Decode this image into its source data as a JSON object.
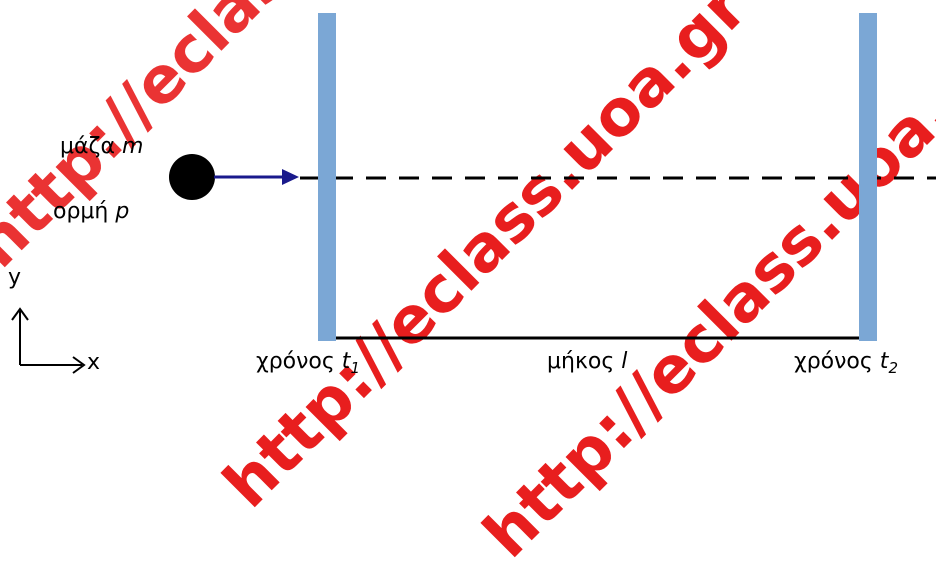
{
  "watermark": {
    "text_a": "http://eclass.uoa.gr",
    "text_b": "http://eclass.uoa.gr",
    "text_c": "http://eclass.uoa.gr",
    "color": "#e81e1e"
  },
  "particle": {
    "mass_label": "μάζα ",
    "mass_symbol": "m",
    "momentum_label": "ορμή ",
    "momentum_symbol": "p"
  },
  "wall_left": {
    "time_label": "χρόνος ",
    "time_symbol": "t",
    "time_index": "1"
  },
  "wall_right": {
    "time_label": "χρόνος ",
    "time_symbol": "t",
    "time_index": "2"
  },
  "length": {
    "label": "μήκος ",
    "symbol": "l"
  },
  "axes": {
    "y": "y",
    "x": "x"
  },
  "colors": {
    "wall": "#7ba7d5",
    "arrow": "#1a1a8c",
    "ball": "#000000"
  }
}
